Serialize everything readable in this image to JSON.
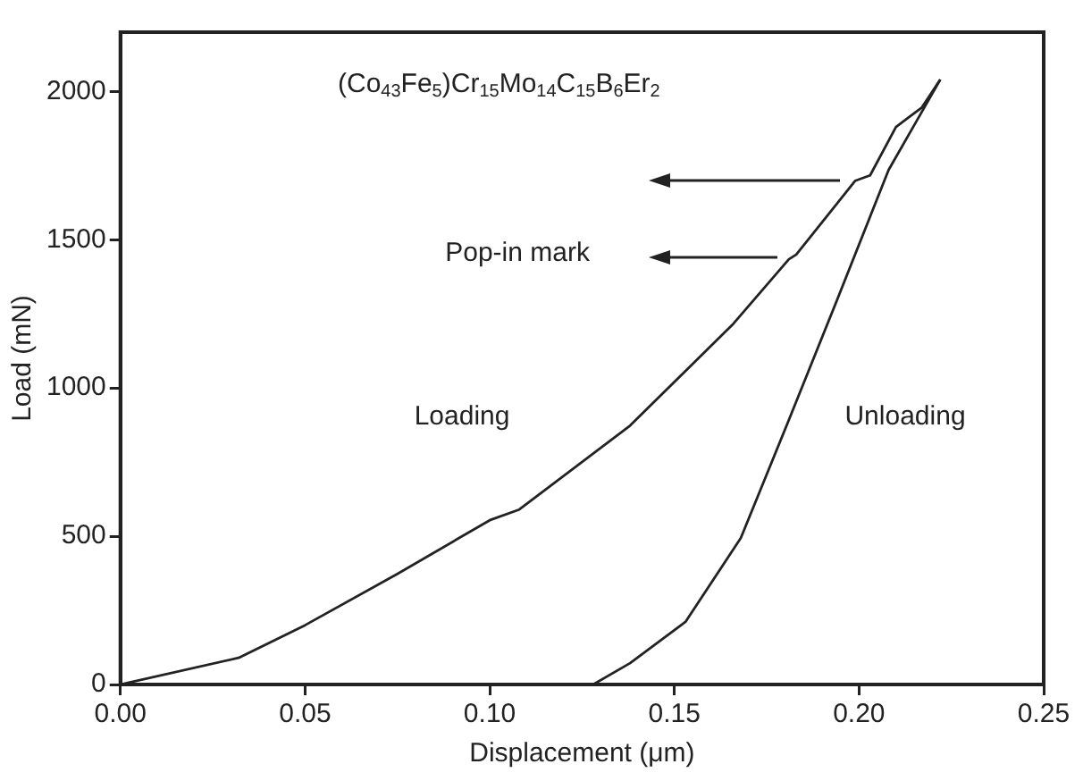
{
  "chart_data": {
    "type": "line",
    "xlabel": "Displacement (μm)",
    "ylabel": "Load (mN)",
    "xlim": [
      0,
      0.25
    ],
    "xticks": [
      {
        "value": 0,
        "label": "0.00"
      },
      0.05,
      {
        "value": 0.1,
        "label": "0.10"
      },
      0.15,
      {
        "value": 0.2,
        "label": "0.20"
      },
      0.25
    ],
    "ylim": [
      0,
      2200
    ],
    "yticks": [
      0,
      500,
      1000,
      1500,
      2000
    ],
    "series": [
      {
        "color": "#222222",
        "x": [
          0,
          0.032,
          0.05,
          0.075,
          0.1,
          0.108,
          0.138,
          0.166,
          0.181,
          0.183,
          0.199,
          0.203,
          0.21,
          0.217,
          0.222
        ],
        "values": [
          0,
          90,
          200,
          373,
          554,
          590,
          873,
          1217,
          1434,
          1450,
          1699,
          1717,
          1880,
          1946,
          2040
        ]
      },
      {
        "color": "#222222",
        "x": [
          0.222,
          0.208,
          0.194,
          0.181,
          0.168,
          0.153,
          0.138,
          0.128
        ],
        "values": [
          2040,
          1735,
          1295,
          892,
          494,
          211,
          72,
          0
        ]
      }
    ],
    "annotations": [
      "(Co$_{43}$Fe$_{5}$)Cr$_{15}$Mo$_{14}$C$_{15}$B$_{6}$Er$_{2}$",
      "Pop-in mark",
      "Loading",
      "Unloading"
    ],
    "grid": false,
    "legend": false,
    "marker": "none",
    "line_style": "solid"
  }
}
